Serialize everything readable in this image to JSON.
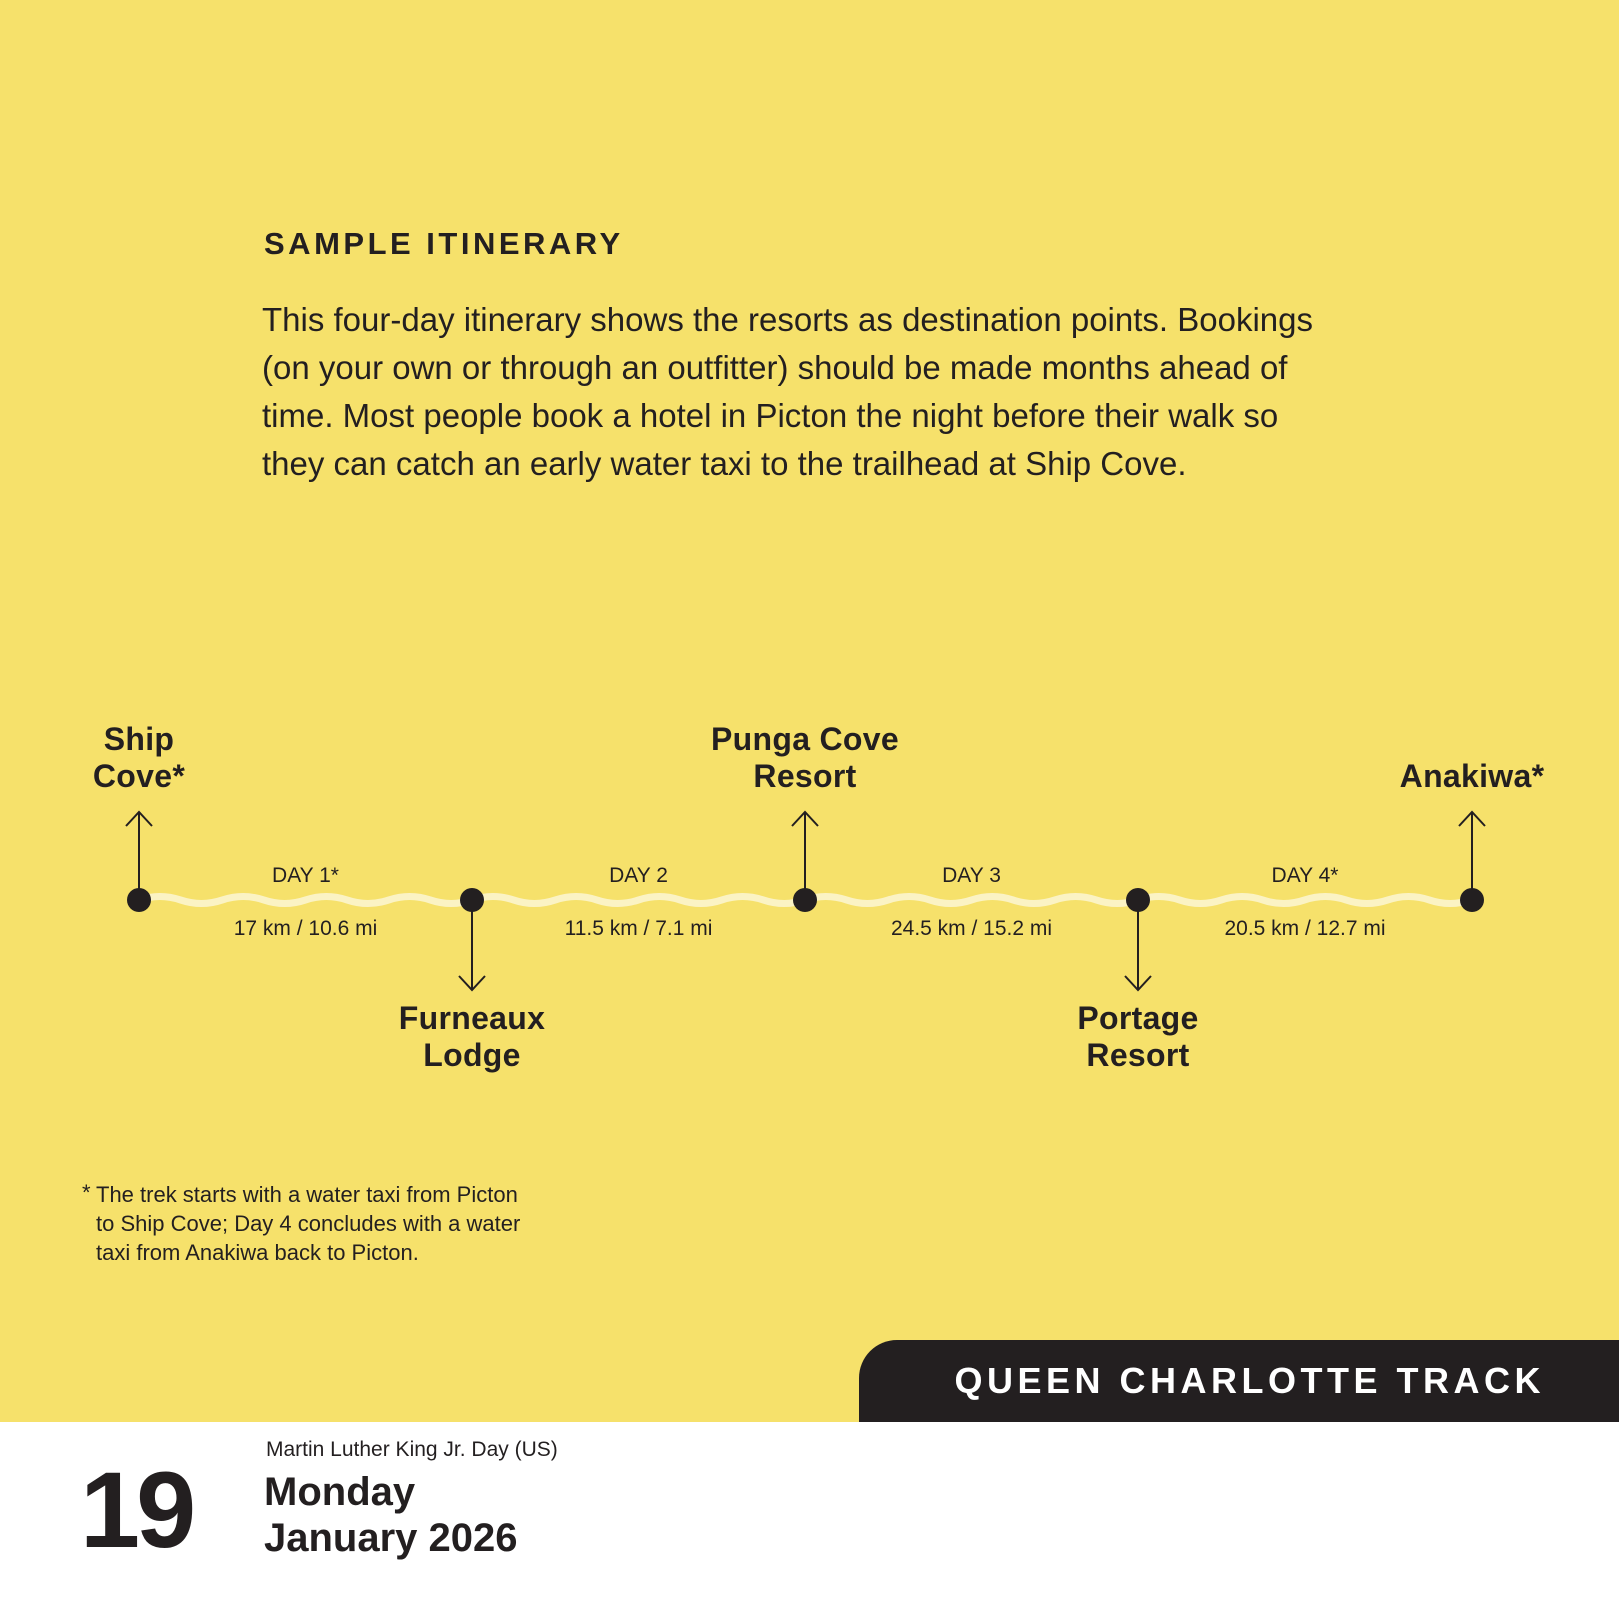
{
  "header": {
    "title": "SAMPLE ITINERARY"
  },
  "intro": "This four-day itinerary shows the resorts as destination points. Bookings (on your own or through an outfitter) should be made months ahead of time. Most people book a hotel in Picton the night before their walk so they can catch an early water taxi to the trailhead at Ship Cove.",
  "itinerary": {
    "stops": [
      {
        "name": "Ship\nCove*",
        "direction": "up"
      },
      {
        "name": "Furneaux\nLodge",
        "direction": "down"
      },
      {
        "name": "Punga Cove\nResort",
        "direction": "up"
      },
      {
        "name": "Portage\nResort",
        "direction": "down"
      },
      {
        "name": "Anakiwa*",
        "direction": "up"
      }
    ],
    "legs": [
      {
        "day": "DAY 1*",
        "distance": "17 km / 10.6 mi"
      },
      {
        "day": "DAY 2",
        "distance": "11.5 km / 7.1 mi"
      },
      {
        "day": "DAY 3",
        "distance": "24.5 km / 15.2 mi"
      },
      {
        "day": "DAY 4*",
        "distance": "20.5 km / 12.7 mi"
      }
    ]
  },
  "footnote": {
    "marker": "*",
    "text": "The trek starts with a water taxi from Picton to Ship Cove; Day 4 concludes with a water taxi from Anakiwa back to Picton."
  },
  "section_tab": "QUEEN CHARLOTTE TRACK",
  "calendar": {
    "day_number": "19",
    "holiday": "Martin Luther King Jr. Day (US)",
    "weekday": "Monday",
    "month_year": "January 2026"
  },
  "colors": {
    "background": "#f6e16b",
    "ink": "#231f20",
    "trail": "#fbf3c4",
    "tab_text": "#ffffff"
  }
}
